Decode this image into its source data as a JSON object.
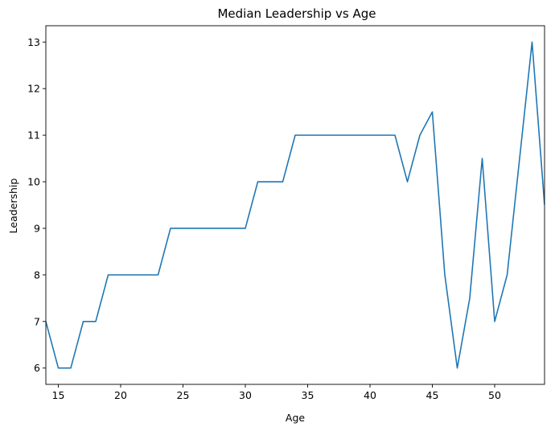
{
  "chart_data": {
    "type": "line",
    "title": "Median Leadership vs Age",
    "xlabel": "Age",
    "ylabel": "Leadership",
    "xlim": [
      14,
      54
    ],
    "ylim": [
      5.65,
      13.35
    ],
    "xticks": [
      15,
      20,
      25,
      30,
      35,
      40,
      45,
      50
    ],
    "yticks": [
      6,
      7,
      8,
      9,
      10,
      11,
      12,
      13
    ],
    "grid": false,
    "color": "#1f77b4",
    "series": [
      {
        "x": [
          14,
          15,
          16,
          17,
          18,
          19,
          20,
          21,
          22,
          23,
          24,
          25,
          26,
          27,
          28,
          29,
          30,
          31,
          32,
          33,
          34,
          35,
          36,
          37,
          38,
          39,
          40,
          41,
          42,
          43,
          44,
          45,
          46,
          47,
          48,
          49,
          50,
          51,
          52,
          53,
          54
        ],
        "values": [
          7,
          6,
          6,
          7,
          7,
          8,
          8,
          8,
          8,
          8,
          9,
          9,
          9,
          9,
          9,
          9,
          9,
          10,
          10,
          10,
          11,
          11,
          11,
          11,
          11,
          11,
          11,
          11,
          11,
          10,
          11,
          11.5,
          8,
          6,
          7.5,
          10.5,
          7,
          8,
          10.5,
          13,
          9.5
        ]
      }
    ]
  }
}
